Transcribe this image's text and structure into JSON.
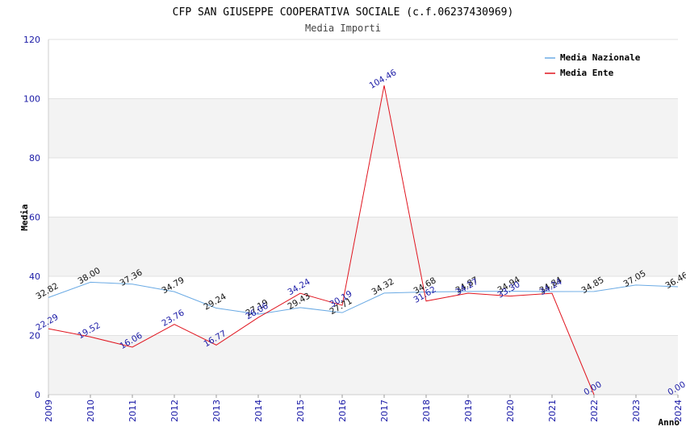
{
  "chart_data": {
    "type": "line",
    "title": "CFP SAN GIUSEPPE COOPERATIVA SOCIALE (c.f.06237430969)",
    "subtitle": "Media Importi",
    "xlabel": "Anno",
    "ylabel": "Media",
    "ylim": [
      0,
      120
    ],
    "yticks": [
      0,
      20,
      40,
      60,
      80,
      100,
      120
    ],
    "categories": [
      "2009",
      "2010",
      "2011",
      "2012",
      "2013",
      "2014",
      "2015",
      "2016",
      "2017",
      "2018",
      "2019",
      "2020",
      "2021",
      "2022",
      "2023",
      "2024"
    ],
    "legend_position": "top-right",
    "series": [
      {
        "name": "Media Nazionale",
        "color": "#6aaae4",
        "values": [
          32.82,
          38.0,
          37.36,
          34.79,
          29.24,
          27.19,
          29.43,
          27.71,
          34.32,
          34.68,
          34.87,
          34.94,
          34.84,
          34.85,
          37.05,
          36.46
        ],
        "labels": [
          "32.82",
          "38.00",
          "37.36",
          "34.79",
          "29.24",
          "27.19",
          "29.43",
          "27.71",
          "34.32",
          "34.68",
          "34.87",
          "34.94",
          "34.84",
          "34.85",
          "37.05",
          "36.46"
        ]
      },
      {
        "name": "Media Ente",
        "color": "#e0141e",
        "values": [
          22.29,
          19.52,
          16.06,
          23.76,
          16.77,
          26.06,
          34.24,
          30.19,
          104.46,
          31.62,
          34.27,
          33.3,
          34.24,
          0.0,
          null,
          0.0
        ],
        "labels": [
          "22.29",
          "19.52",
          "16.06",
          "23.76",
          "16.77",
          "26.06",
          "34.24",
          "30.19",
          "104.46",
          "31.62",
          "34.27",
          "33.30",
          "34.24",
          "0.00",
          null,
          "0.00"
        ]
      }
    ]
  }
}
